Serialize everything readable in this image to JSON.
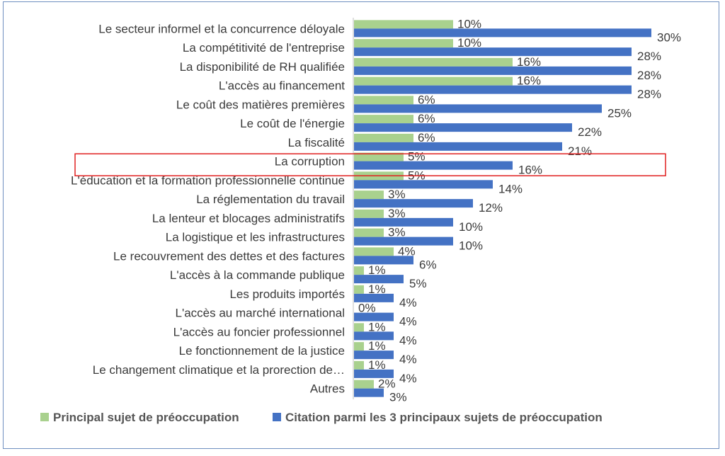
{
  "chart_data": {
    "type": "bar",
    "orientation": "horizontal",
    "categories": [
      "Le secteur informel et la concurrence déloyale",
      "La compétitivité de l'entreprise",
      "La disponibilité de RH qualifiée",
      "L'accès au financement",
      "Le coût des matières premières",
      "Le coût de l'énergie",
      "La fiscalité",
      "La corruption",
      "L'éducation et la formation professionnelle continue",
      "La réglementation du travail",
      "La lenteur et blocages administratifs",
      "La logistique et les infrastructures",
      "Le recouvrement des dettes et des factures",
      "L'accès à la commande publique",
      "Les produits importés",
      "L'accès au marché international",
      "L'accès au foncier professionnel",
      "Le fonctionnement de la justice",
      "Le changement climatique et la prorection de…",
      "Autres"
    ],
    "series": [
      {
        "name": "Principal sujet de préoccupation",
        "color": "#a9d18e",
        "values": [
          10,
          10,
          16,
          16,
          6,
          6,
          6,
          5,
          5,
          3,
          3,
          3,
          4,
          1,
          1,
          0,
          1,
          1,
          1,
          2
        ],
        "labels": [
          "10%",
          "10%",
          "16%",
          "16%",
          "6%",
          "6%",
          "6%",
          "5%",
          "5%",
          "3%",
          "3%",
          "3%",
          "4%",
          "1%",
          "1%",
          "0%",
          "1%",
          "1%",
          "1%",
          "2%"
        ]
      },
      {
        "name": "Citation parmi les 3 principaux sujets de préoccupation",
        "color": "#4472c4",
        "values": [
          30,
          28,
          28,
          28,
          25,
          22,
          21,
          16,
          14,
          12,
          10,
          10,
          6,
          5,
          4,
          4,
          4,
          4,
          4,
          3
        ],
        "labels": [
          "30%",
          "28%",
          "28%",
          "28%",
          "25%",
          "22%",
          "21%",
          "16%",
          "14%",
          "12%",
          "10%",
          "10%",
          "6%",
          "5%",
          "4%",
          "4%",
          "4%",
          "4%",
          "4%",
          "3%"
        ]
      }
    ],
    "xlim": [
      0,
      30
    ],
    "grid": false,
    "legend_position": "bottom",
    "highlight_category": "La corruption",
    "highlight_color": "#e02020"
  }
}
